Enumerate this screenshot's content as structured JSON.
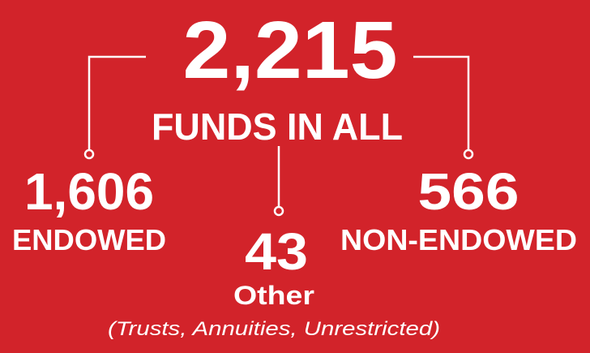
{
  "total": {
    "number": "2,215",
    "label": "FUNDS IN ALL"
  },
  "items": [
    {
      "number": "1,606",
      "label": "ENDOWED"
    },
    {
      "number": "43",
      "label": "Other",
      "note": "(Trusts, Annuities, Unrestricted)"
    },
    {
      "number": "566",
      "label": "NON-ENDOWED"
    }
  ]
}
